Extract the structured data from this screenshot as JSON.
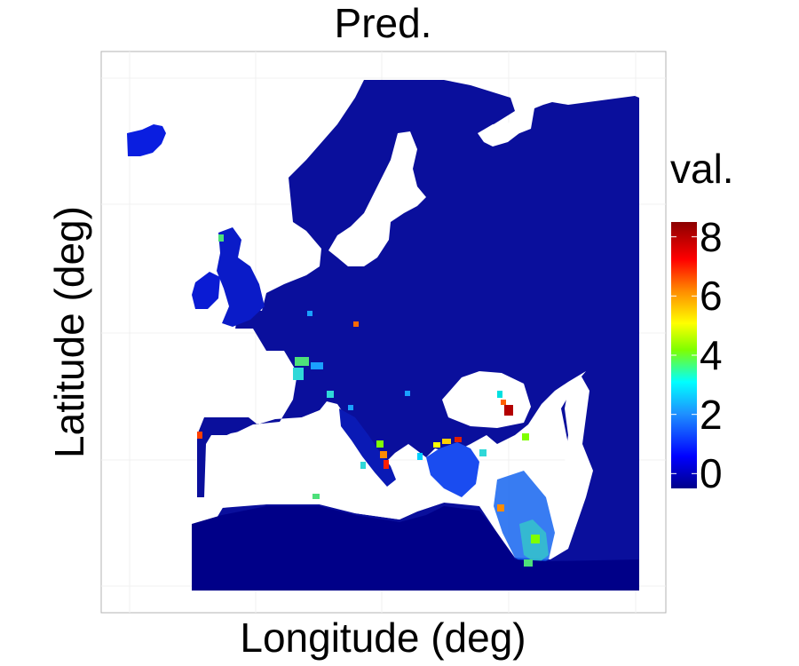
{
  "chart_data": {
    "type": "heatmap",
    "title": "Pred.",
    "xlabel": "Longitude (deg)",
    "ylabel": "Latitude (deg)",
    "grid": true,
    "legend": {
      "title": "val.",
      "position": "right",
      "range": [
        -0.5,
        8.5
      ],
      "ticks": [
        {
          "value": 0,
          "label": "0"
        },
        {
          "value": 2,
          "label": "2"
        },
        {
          "value": 4,
          "label": "4"
        },
        {
          "value": 6,
          "label": "6"
        },
        {
          "value": 8,
          "label": "8"
        }
      ],
      "colormap": [
        "#00008B",
        "#0000FF",
        "#1E90FF",
        "#00FFFF",
        "#7FFF00",
        "#FFFF00",
        "#FF8C00",
        "#FF0000",
        "#8B0000"
      ]
    },
    "colors": {
      "background_land_low": "#0a0a9a",
      "hotspot_high": "#b30000"
    }
  }
}
